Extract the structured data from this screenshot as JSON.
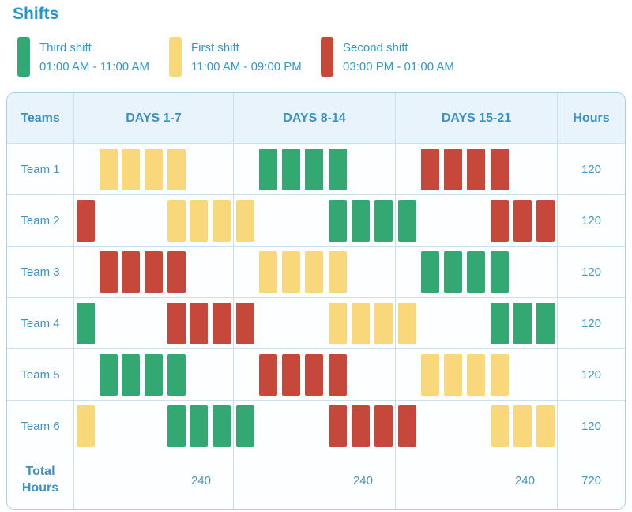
{
  "title": "Shifts",
  "colors": {
    "third": "#33A873",
    "first": "#F9D87B",
    "second": "#C5483A"
  },
  "ui_colors": {
    "accent_text": "#2E9AC6",
    "table_text": "#3E92C1",
    "header_bg": "#E9F3FB",
    "border": "#A9D2E7"
  },
  "legend": {
    "items": [
      {
        "shift": "third",
        "label": "Third shift",
        "time": "01:00 AM - 11:00 AM"
      },
      {
        "shift": "first",
        "label": "First shift",
        "time": "11:00 AM - 09:00 PM"
      },
      {
        "shift": "second",
        "label": "Second shift",
        "time": "03:00 PM - 01:00 AM"
      }
    ]
  },
  "table": {
    "headers": {
      "teams": "Teams",
      "period1": "DAYS 1-7",
      "period2": "DAYS 8-14",
      "period3": "DAYS 15-21",
      "hours": "Hours"
    },
    "teams": [
      {
        "name": "Team 1",
        "hours": "120",
        "periods": [
          [
            "",
            "first",
            "first",
            "first",
            "first",
            "",
            ""
          ],
          [
            "",
            "third",
            "third",
            "third",
            "third",
            "",
            ""
          ],
          [
            "",
            "second",
            "second",
            "second",
            "second",
            "",
            ""
          ]
        ]
      },
      {
        "name": "Team 2",
        "hours": "120",
        "periods": [
          [
            "second",
            "",
            "",
            "",
            "first",
            "first",
            "first"
          ],
          [
            "first",
            "",
            "",
            "",
            "third",
            "third",
            "third"
          ],
          [
            "third",
            "",
            "",
            "",
            "second",
            "second",
            "second"
          ]
        ]
      },
      {
        "name": "Team 3",
        "hours": "120",
        "periods": [
          [
            "",
            "second",
            "second",
            "second",
            "second",
            "",
            ""
          ],
          [
            "",
            "first",
            "first",
            "first",
            "first",
            "",
            ""
          ],
          [
            "",
            "third",
            "third",
            "third",
            "third",
            "",
            ""
          ]
        ]
      },
      {
        "name": "Team 4",
        "hours": "120",
        "periods": [
          [
            "third",
            "",
            "",
            "",
            "second",
            "second",
            "second"
          ],
          [
            "second",
            "",
            "",
            "",
            "first",
            "first",
            "first"
          ],
          [
            "first",
            "",
            "",
            "",
            "third",
            "third",
            "third"
          ]
        ]
      },
      {
        "name": "Team 5",
        "hours": "120",
        "periods": [
          [
            "",
            "third",
            "third",
            "third",
            "third",
            "",
            ""
          ],
          [
            "",
            "second",
            "second",
            "second",
            "second",
            "",
            ""
          ],
          [
            "",
            "first",
            "first",
            "first",
            "first",
            "",
            ""
          ]
        ]
      },
      {
        "name": "Team 6",
        "hours": "120",
        "periods": [
          [
            "first",
            "",
            "",
            "",
            "third",
            "third",
            "third"
          ],
          [
            "third",
            "",
            "",
            "",
            "second",
            "second",
            "second"
          ],
          [
            "second",
            "",
            "",
            "",
            "first",
            "first",
            "first"
          ]
        ]
      }
    ],
    "total": {
      "label": "Total Hours",
      "period1": "240",
      "period2": "240",
      "period3": "240",
      "hours": "720"
    }
  },
  "chart_data": {
    "type": "table",
    "title": "Shifts",
    "columns": [
      "Teams",
      "DAYS 1-7",
      "DAYS 8-14",
      "DAYS 15-21",
      "Hours"
    ],
    "legend": [
      {
        "label": "Third shift",
        "time": "01:00 AM - 11:00 AM",
        "color": "#33A873"
      },
      {
        "label": "First shift",
        "time": "11:00 AM - 09:00 PM",
        "color": "#F9D87B"
      },
      {
        "label": "Second shift",
        "time": "03:00 PM - 01:00 AM",
        "color": "#C5483A"
      }
    ],
    "rows": [
      {
        "team": "Team 1",
        "days_1_7": "First shift (days 2-5)",
        "days_8_14": "Third shift (days 9-12)",
        "days_15_21": "Second shift (days 16-19)",
        "hours": 120
      },
      {
        "team": "Team 2",
        "days_1_7": "Second shift (day 1); First shift (days 5-7)",
        "days_8_14": "First shift (day 8); Third shift (days 12-14)",
        "days_15_21": "Third shift (day 15); Second shift (days 19-21)",
        "hours": 120
      },
      {
        "team": "Team 3",
        "days_1_7": "Second shift (days 2-5)",
        "days_8_14": "First shift (days 9-12)",
        "days_15_21": "Third shift (days 16-19)",
        "hours": 120
      },
      {
        "team": "Team 4",
        "days_1_7": "Third shift (day 1); Second shift (days 5-7)",
        "days_8_14": "Second shift (day 8); First shift (days 12-14)",
        "days_15_21": "First shift (day 15); Third shift (days 19-21)",
        "hours": 120
      },
      {
        "team": "Team 5",
        "days_1_7": "Third shift (days 2-5)",
        "days_8_14": "Second shift (days 9-12)",
        "days_15_21": "First shift (days 16-19)",
        "hours": 120
      },
      {
        "team": "Team 6",
        "days_1_7": "First shift (day 1); Third shift (days 5-7)",
        "days_8_14": "Third shift (day 8); Second shift (days 12-14)",
        "days_15_21": "Second shift (day 15); First shift (days 19-21)",
        "hours": 120
      }
    ],
    "totals": {
      "days_1_7": 240,
      "days_8_14": 240,
      "days_15_21": 240,
      "hours": 720
    }
  }
}
